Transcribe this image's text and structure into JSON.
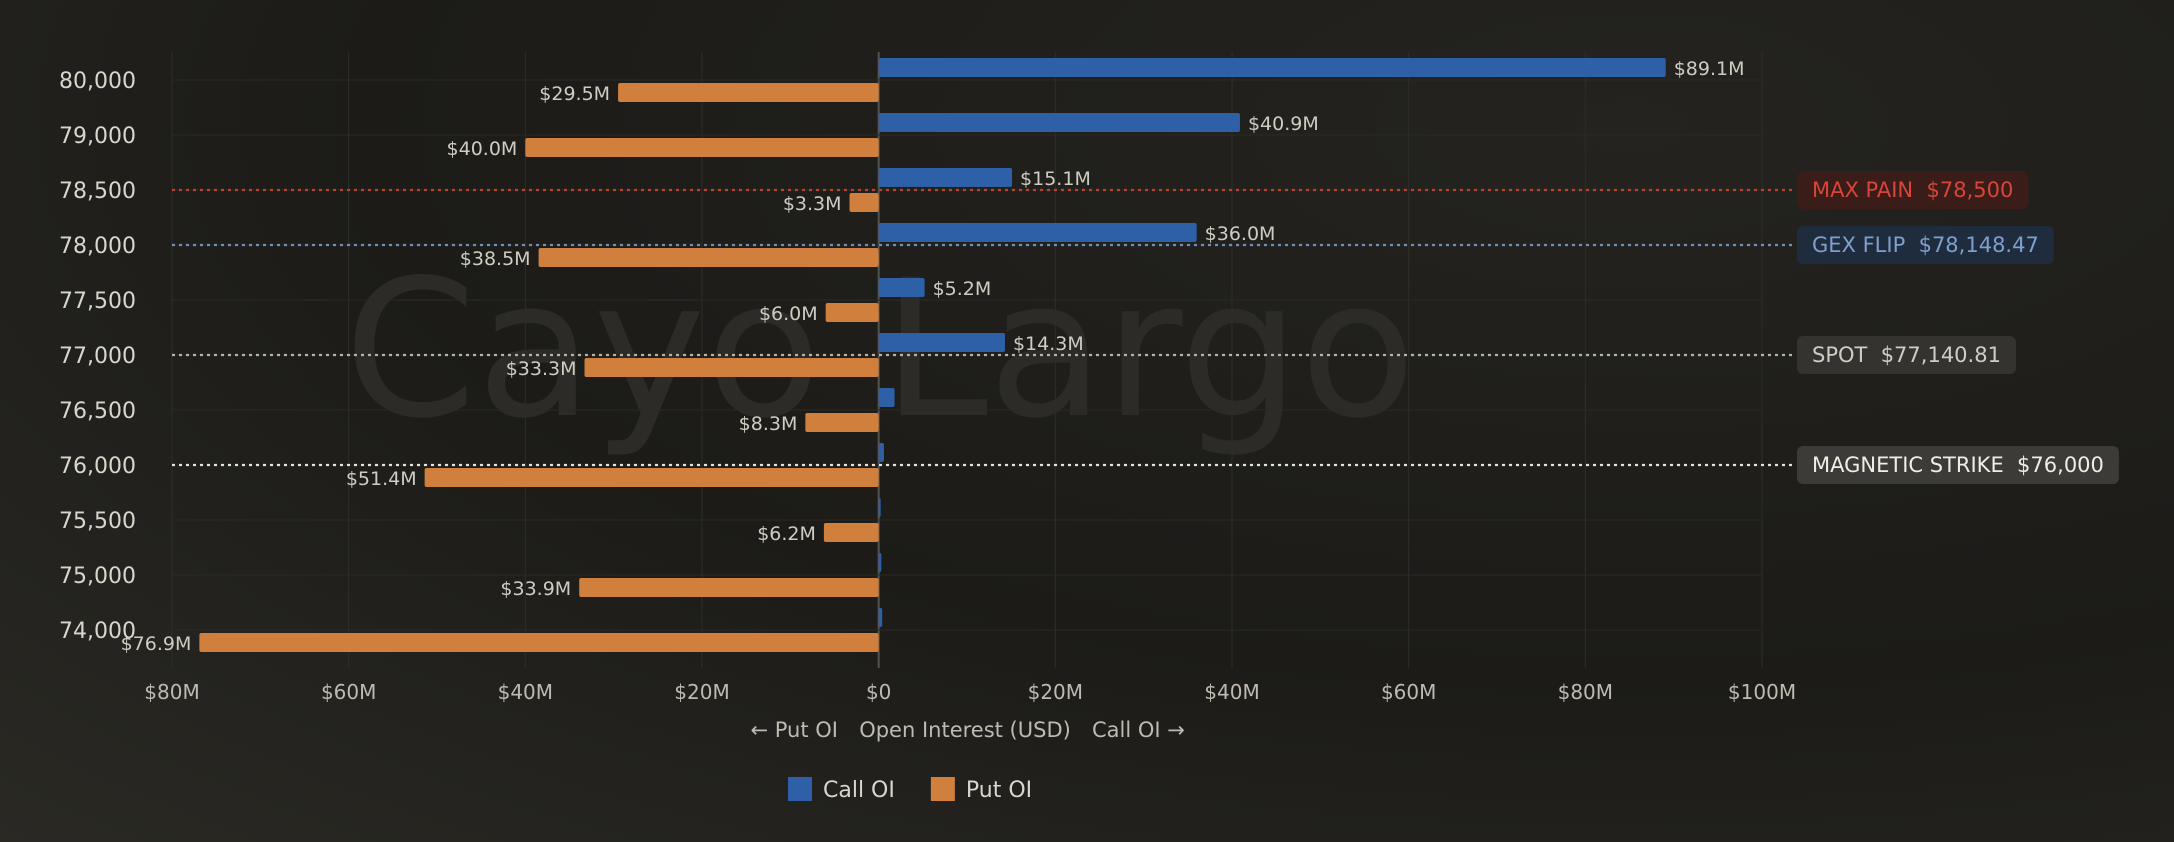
{
  "chart_data": {
    "type": "bar",
    "orientation": "horizontal",
    "categories": [
      "80,000",
      "79,000",
      "78,500",
      "78,000",
      "77,500",
      "77,000",
      "76,500",
      "76,000",
      "75,500",
      "75,000",
      "74,000"
    ],
    "series": [
      {
        "name": "Call OI",
        "color": "#2e60a8",
        "values": [
          89.1,
          40.9,
          15.1,
          36.0,
          5.2,
          14.3,
          1.8,
          0.6,
          0.2,
          0.3,
          0.4
        ],
        "labels": [
          "$89.1M",
          "$40.9M",
          "$15.1M",
          "$36.0M",
          "$5.2M",
          "$14.3M",
          "",
          "",
          "",
          "",
          ""
        ]
      },
      {
        "name": "Put OI",
        "color": "#d07f3d",
        "values": [
          29.5,
          40.0,
          3.3,
          38.5,
          6.0,
          33.3,
          8.3,
          51.4,
          6.2,
          33.9,
          76.9
        ],
        "labels": [
          "$29.5M",
          "$40.0M",
          "$3.3M",
          "$38.5M",
          "$6.0M",
          "$33.3M",
          "$8.3M",
          "$51.4M",
          "$6.2M",
          "$33.9M",
          "$76.9M"
        ]
      }
    ],
    "xlim": [
      -80,
      100
    ],
    "x_ticks": [
      -80,
      -60,
      -40,
      -20,
      0,
      20,
      40,
      60,
      80,
      100
    ],
    "x_tick_labels": [
      "$80M",
      "$60M",
      "$40M",
      "$20M",
      "$0",
      "$20M",
      "$40M",
      "$60M",
      "$80M",
      "$100M"
    ],
    "xlabel_left": "← Put OI",
    "xlabel": "Open Interest (USD)",
    "xlabel_right": "Call OI →",
    "ylabel": "",
    "legend": [
      {
        "label": "Call OI",
        "color": "#2e60a8"
      },
      {
        "label": "Put OI",
        "color": "#d07f3d"
      }
    ],
    "markers": [
      {
        "category": "78,500",
        "label": "MAX PAIN  $78,500",
        "line_color": "#b8432f",
        "text_color": "#d8453a",
        "box_color": "#3a1c19"
      },
      {
        "category": "78,000",
        "label": "GEX FLIP  $78,148.47",
        "line_color": "#6f8fb8",
        "text_color": "#7f9fcc",
        "box_color": "#1f2c3e"
      },
      {
        "category": "77,000",
        "label": "SPOT  $77,140.81",
        "line_color": "#b5b2a8",
        "text_color": "#d0cdc3",
        "box_color": "#34332f"
      },
      {
        "category": "76,000",
        "label": "MAGNETIC STRIKE  $76,000",
        "line_color": "#e6e3da",
        "text_color": "#f0ede4",
        "box_color": "#3c3b37"
      }
    ],
    "watermark": "Cayo Largo",
    "grid": true
  }
}
